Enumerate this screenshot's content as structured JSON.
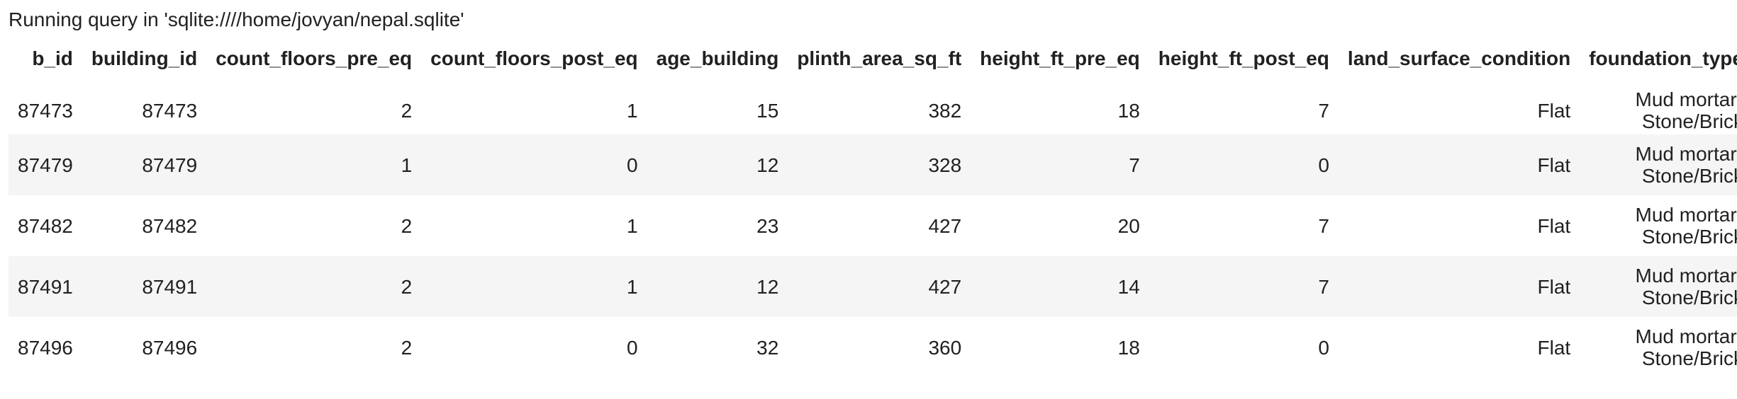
{
  "status": {
    "text": "Running query in 'sqlite:////home/jovyan/nepal.sqlite'"
  },
  "table": {
    "columns": [
      {
        "key": "b_id",
        "label": "b_id"
      },
      {
        "key": "building_id",
        "label": "building_id"
      },
      {
        "key": "count_floors_pre_eq",
        "label": "count_floors_pre_eq"
      },
      {
        "key": "count_floors_post_eq",
        "label": "count_floors_post_eq"
      },
      {
        "key": "age_building",
        "label": "age_building"
      },
      {
        "key": "plinth_area_sq_ft",
        "label": "plinth_area_sq_ft"
      },
      {
        "key": "height_ft_pre_eq",
        "label": "height_ft_pre_eq"
      },
      {
        "key": "height_ft_post_eq",
        "label": "height_ft_post_eq"
      },
      {
        "key": "land_surface_condition",
        "label": "land_surface_condition"
      },
      {
        "key": "foundation_type",
        "label": "foundation_type"
      }
    ],
    "rows": [
      [
        "87473",
        "87473",
        "2",
        "1",
        "15",
        "382",
        "18",
        "7",
        "Flat",
        "Mud mortar-Stone/Brick"
      ],
      [
        "87479",
        "87479",
        "1",
        "0",
        "12",
        "328",
        "7",
        "0",
        "Flat",
        "Mud mortar-Stone/Brick"
      ],
      [
        "87482",
        "87482",
        "2",
        "1",
        "23",
        "427",
        "20",
        "7",
        "Flat",
        "Mud mortar-Stone/Brick"
      ],
      [
        "87491",
        "87491",
        "2",
        "1",
        "12",
        "427",
        "14",
        "7",
        "Flat",
        "Mud mortar-Stone/Brick"
      ],
      [
        "87496",
        "87496",
        "2",
        "0",
        "32",
        "360",
        "18",
        "0",
        "Flat",
        "Mud mortar-Stone/Brick"
      ]
    ]
  }
}
